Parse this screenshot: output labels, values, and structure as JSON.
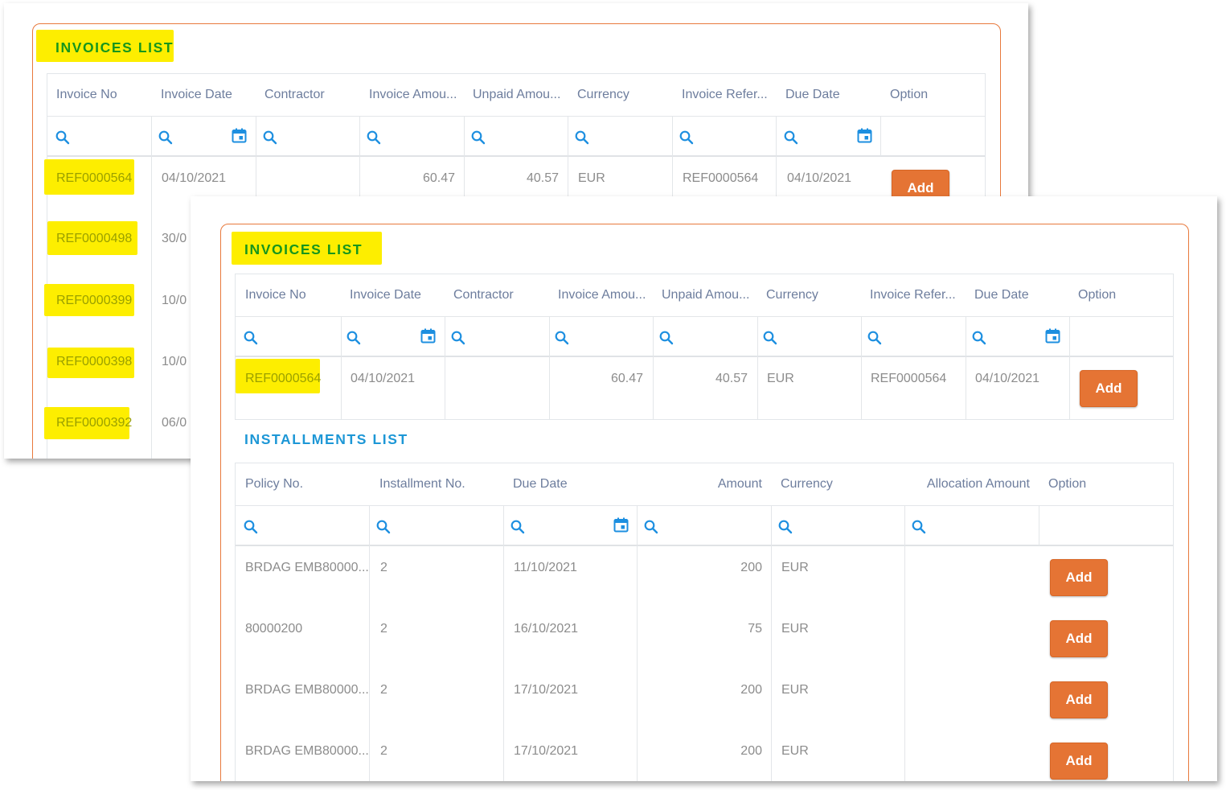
{
  "colors": {
    "accent_orange": "#e57434",
    "highlight_yellow": "#fdee00",
    "title_green": "#17961c",
    "title_blue": "#1d97d6",
    "header_text": "#6d7d9d",
    "cell_text": "#8c8c8c",
    "icon_blue": "#1d8fe0"
  },
  "back_panel": {
    "title": "INVOICES LIST",
    "columns": [
      "Invoice No",
      "Invoice Date",
      "Contractor",
      "Invoice Amou...",
      "Unpaid Amou...",
      "Currency",
      "Invoice Refer...",
      "Due Date",
      "Option"
    ],
    "rows": [
      {
        "invoice_no": "REF0000564",
        "invoice_date": "04/10/2021",
        "invoice_amount": "60.47",
        "unpaid_amount": "40.57",
        "currency": "EUR",
        "invoice_ref": "REF0000564",
        "due_date": "04/10/2021",
        "option": "Add"
      },
      {
        "invoice_no": "REF0000498",
        "invoice_date": "30/0"
      },
      {
        "invoice_no": "REF0000399",
        "invoice_date": "10/0"
      },
      {
        "invoice_no": "REF0000398",
        "invoice_date": "10/0"
      },
      {
        "invoice_no": "REF0000392",
        "invoice_date": "06/0"
      }
    ]
  },
  "front_panel": {
    "invoices": {
      "title": "INVOICES LIST",
      "columns": [
        "Invoice No",
        "Invoice Date",
        "Contractor",
        "Invoice Amou...",
        "Unpaid Amou...",
        "Currency",
        "Invoice Refer...",
        "Due Date",
        "Option"
      ],
      "rows": [
        {
          "invoice_no": "REF0000564",
          "invoice_date": "04/10/2021",
          "contractor": "",
          "invoice_amount": "60.47",
          "unpaid_amount": "40.57",
          "currency": "EUR",
          "invoice_ref": "REF0000564",
          "due_date": "04/10/2021",
          "option": "Add"
        }
      ]
    },
    "installments": {
      "title": "INSTALLMENTS LIST",
      "columns": [
        "Policy No.",
        "Installment No.",
        "Due Date",
        "Amount",
        "Currency",
        "Allocation Amount",
        "Option"
      ],
      "rows": [
        {
          "policy_no": "BRDAG EMB80000...",
          "installment_no": "2",
          "due_date": "11/10/2021",
          "amount": "200",
          "currency": "EUR",
          "allocation_amount": "",
          "option": "Add"
        },
        {
          "policy_no": "80000200",
          "installment_no": "2",
          "due_date": "16/10/2021",
          "amount": "75",
          "currency": "EUR",
          "allocation_amount": "",
          "option": "Add"
        },
        {
          "policy_no": "BRDAG EMB80000...",
          "installment_no": "2",
          "due_date": "17/10/2021",
          "amount": "200",
          "currency": "EUR",
          "allocation_amount": "",
          "option": "Add"
        },
        {
          "policy_no": "BRDAG EMB80000...",
          "installment_no": "2",
          "due_date": "17/10/2021",
          "amount": "200",
          "currency": "EUR",
          "allocation_amount": "",
          "option": "Add"
        }
      ]
    }
  }
}
